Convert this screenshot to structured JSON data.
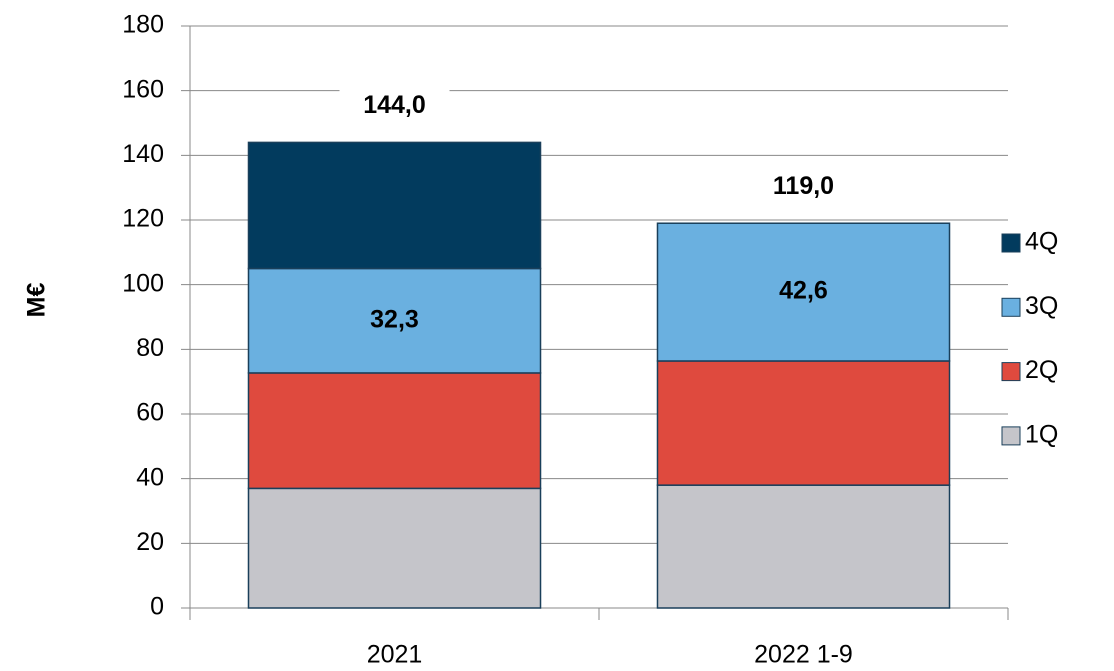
{
  "chart_data": {
    "type": "stacked_bar",
    "y_label": "M€",
    "categories": [
      "2021",
      "2022 1-9"
    ],
    "series": [
      {
        "name": "1Q",
        "color": "#c5c5ca",
        "values": [
          37,
          38
        ]
      },
      {
        "name": "2Q",
        "color": "#df4a3e",
        "values": [
          35.7,
          38.4
        ]
      },
      {
        "name": "3Q",
        "color": "#6ab0e0",
        "values": [
          32.3,
          42.6
        ],
        "value_labels": [
          "32,3",
          "42,6"
        ]
      },
      {
        "name": "4Q",
        "color": "#023b5e",
        "values": [
          39,
          null
        ]
      }
    ],
    "totals": {
      "values": [
        144,
        119
      ],
      "value_labels": [
        "144,0",
        "119,0"
      ]
    },
    "ylim": [
      0,
      180
    ],
    "yticks": [
      0,
      20,
      40,
      60,
      80,
      100,
      120,
      140,
      160,
      180
    ],
    "grid": true,
    "legend": "right"
  }
}
